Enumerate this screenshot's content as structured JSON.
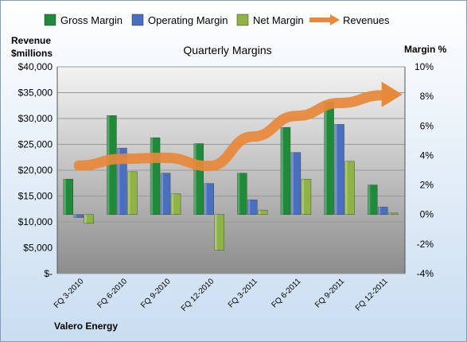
{
  "chart_data": {
    "type": "bar",
    "title": "Quarterly Margins",
    "categories": [
      "FQ 3-2010",
      "FQ 6-2010",
      "FQ 9-2010",
      "FQ 12-2010",
      "FQ 3-2011",
      "FQ 6-2011",
      "FQ 9-2011",
      "FQ 12-2011"
    ],
    "series": [
      {
        "name": "Gross Margin",
        "color": "#1f8a3a",
        "values": [
          2.4,
          6.7,
          5.2,
          4.8,
          2.8,
          5.9,
          7.6,
          2.0
        ]
      },
      {
        "name": "Operating Margin",
        "color": "#4a6fbf",
        "values": [
          -0.2,
          4.5,
          2.8,
          2.1,
          1.0,
          4.2,
          6.1,
          0.5
        ]
      },
      {
        "name": "Net Margin",
        "color": "#8fb445",
        "values": [
          -0.6,
          2.9,
          1.4,
          -2.4,
          0.3,
          2.4,
          3.6,
          0.1
        ]
      }
    ],
    "line_series": {
      "name": "Revenues",
      "color": "#e8883a",
      "values": [
        20900,
        22200,
        22400,
        20800,
        26500,
        30500,
        33000,
        34500
      ]
    },
    "left_axis": {
      "label_line1": "Revenue",
      "label_line2": "$millions",
      "min": 0,
      "max": 40000,
      "step": 5000,
      "tick_labels": [
        "$-",
        "$5,000",
        "$10,000",
        "$15,000",
        "$20,000",
        "$25,000",
        "$30,000",
        "$35,000",
        "$40,000"
      ]
    },
    "right_axis": {
      "label": "Margin %",
      "min": -4,
      "max": 10,
      "step": 2,
      "tick_labels": [
        "-4%",
        "-2%",
        "0%",
        "2%",
        "4%",
        "6%",
        "8%",
        "10%"
      ]
    },
    "legend_position": "top",
    "grid": true,
    "footer": "Valero Energy"
  }
}
